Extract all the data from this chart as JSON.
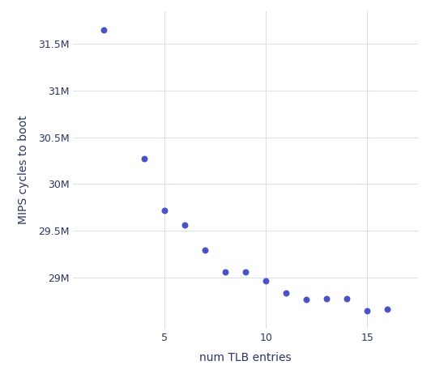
{
  "x": [
    2,
    4,
    5,
    6,
    7,
    8,
    9,
    10,
    11,
    12,
    13,
    14,
    15,
    16
  ],
  "y": [
    31650000,
    30270000,
    29720000,
    29560000,
    29290000,
    29060000,
    29060000,
    28960000,
    28830000,
    28760000,
    28770000,
    28770000,
    28640000,
    28660000
  ],
  "xlabel": "num TLB entries",
  "ylabel": "MIPS cycles to boot",
  "dot_color": "#4a52c8",
  "background_color": "#ffffff",
  "grid_color": "#d8dff0",
  "tick_color": "#2d3561",
  "label_color": "#2d3561",
  "xlim": [
    0.5,
    17.5
  ],
  "ylim": [
    28450000,
    31850000
  ],
  "xticks": [
    5,
    10,
    15
  ],
  "ytick_values": [
    29000000,
    29500000,
    30000000,
    30500000,
    31000000,
    31500000
  ],
  "ytick_labels": [
    "29M",
    "29.5M",
    "30M",
    "30.5M",
    "31M",
    "31.5M"
  ],
  "dot_size": 22,
  "font_size_ticks": 9,
  "font_size_labels": 10
}
